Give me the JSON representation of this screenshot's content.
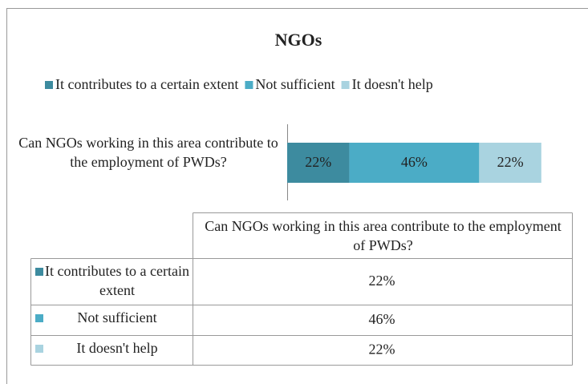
{
  "chart_data": {
    "type": "stacked-bar-horizontal",
    "title": "NGOs",
    "categories": [
      "Can NGOs working in this area contribute to the employment of PWDs?"
    ],
    "xlim": [
      0,
      100
    ],
    "legend": "top",
    "series": [
      {
        "name": "It contributes to a certain extent",
        "color": "#3d8b9f",
        "values": [
          22
        ],
        "value_labels": [
          "22%"
        ]
      },
      {
        "name": "Not sufficient",
        "color": "#4bacc6",
        "values": [
          46
        ],
        "value_labels": [
          "46%"
        ]
      },
      {
        "name": "It doesn't help",
        "color": "#a9d3e0",
        "values": [
          22
        ],
        "value_labels": [
          "22%"
        ]
      }
    ]
  }
}
